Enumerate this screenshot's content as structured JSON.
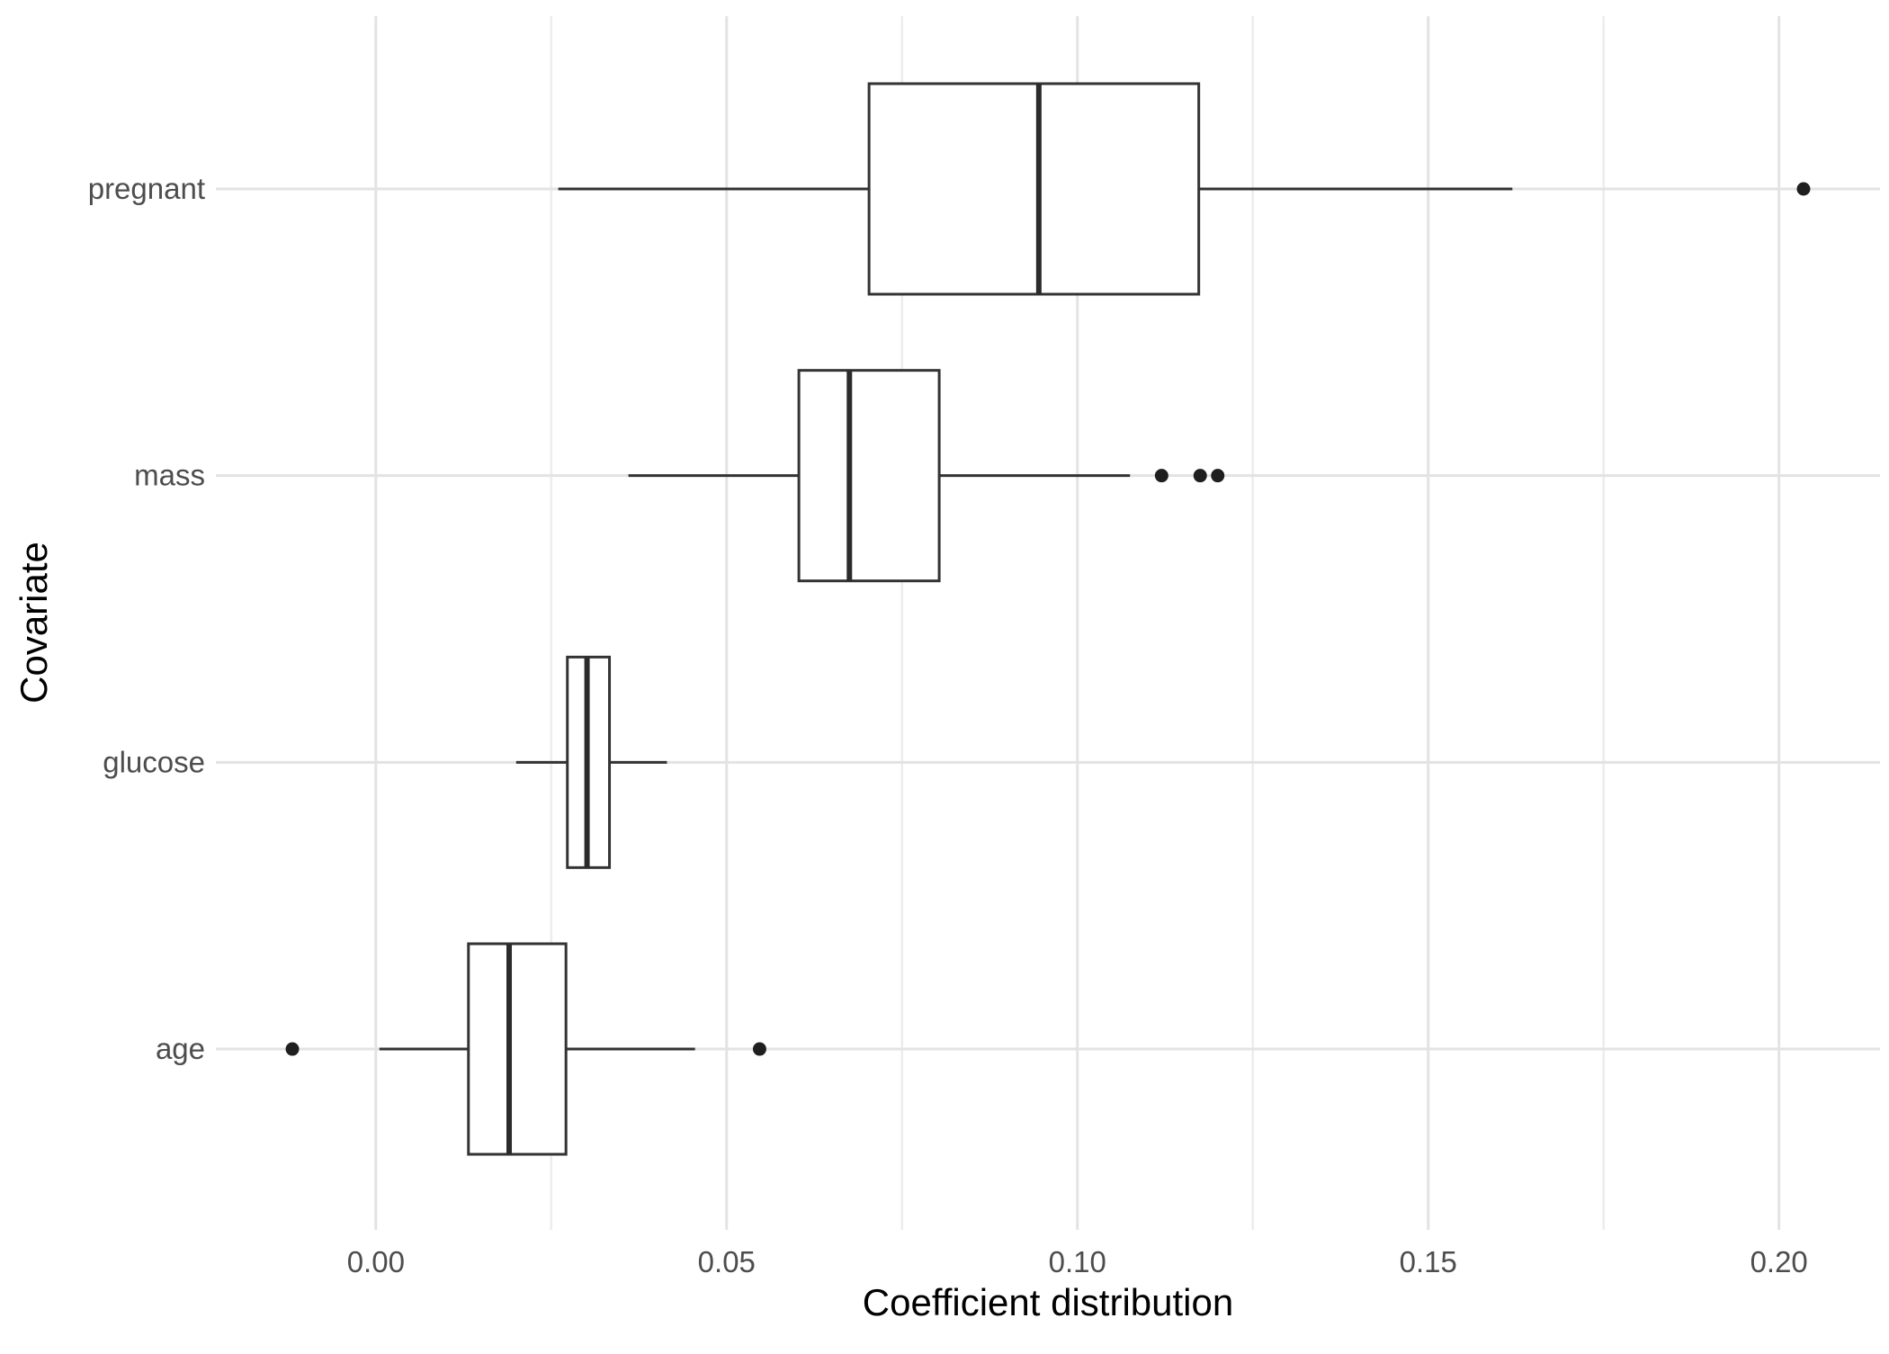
{
  "chart_data": {
    "type": "boxplot",
    "orientation": "horizontal",
    "title": "",
    "xlabel": "Coefficient distribution",
    "ylabel": "Covariate",
    "categories": [
      "pregnant",
      "mass",
      "glucose",
      "age"
    ],
    "x_ticks": {
      "values": [
        0.0,
        0.05,
        0.1,
        0.15,
        0.2
      ],
      "labels": [
        "0.00",
        "0.05",
        "0.10",
        "0.15",
        "0.20"
      ]
    },
    "xlim": [
      -0.0228,
      0.2144
    ],
    "grid": {
      "major": true,
      "minor": true,
      "horizontal_per_category": true
    },
    "legend": "none",
    "series": [
      {
        "category": "pregnant",
        "whisker_low": 0.026,
        "q1": 0.0703,
        "median": 0.0945,
        "q3": 0.1173,
        "whisker_high": 0.162,
        "outliers": [
          0.2035
        ]
      },
      {
        "category": "mass",
        "whisker_low": 0.036,
        "q1": 0.0603,
        "median": 0.0675,
        "q3": 0.0803,
        "whisker_high": 0.1075,
        "outliers": [
          0.112,
          0.1175,
          0.12
        ]
      },
      {
        "category": "glucose",
        "whisker_low": 0.02,
        "q1": 0.0273,
        "median": 0.0301,
        "q3": 0.0333,
        "whisker_high": 0.0415,
        "outliers": []
      },
      {
        "category": "age",
        "whisker_low": 0.0005,
        "q1": 0.0132,
        "median": 0.019,
        "q3": 0.0271,
        "whisker_high": 0.0455,
        "outliers": [
          -0.0119,
          0.0547
        ]
      }
    ],
    "colors": {
      "background": "#FFFFFF",
      "box_fill": "#FFFFFF",
      "box_stroke": "#333333",
      "median_stroke": "#2B2B2B",
      "whisker_stroke": "#333333",
      "outlier_fill": "#1F1F1F",
      "grid_major": "#E3E3E3",
      "grid_minor": "#EDEDED",
      "tick_label": "#4D4D4D",
      "axis_title": "#000000"
    }
  }
}
